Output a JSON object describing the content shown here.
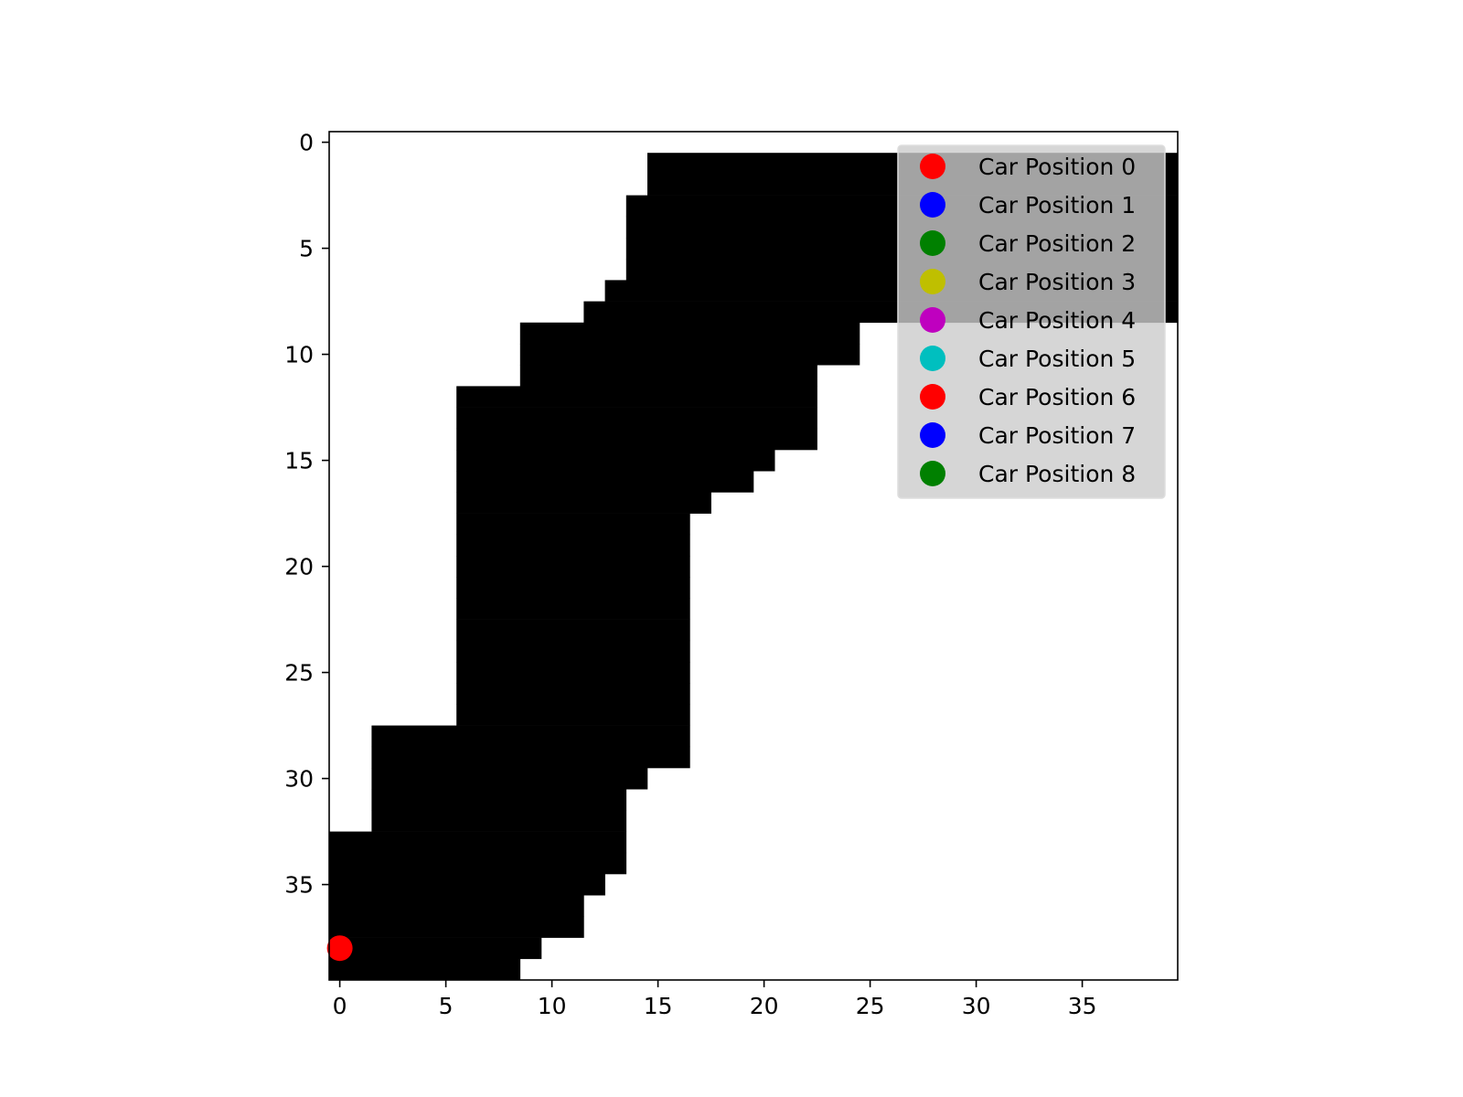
{
  "chart_data": {
    "type": "heatmap",
    "title": "",
    "xlabel": "",
    "ylabel": "",
    "grid_size": [
      40,
      40
    ],
    "xlim": [
      -0.5,
      39.5
    ],
    "ylim": [
      39.5,
      -0.5
    ],
    "grid": false,
    "x_ticks": [
      0,
      5,
      10,
      15,
      20,
      25,
      30,
      35
    ],
    "y_ticks": [
      0,
      5,
      10,
      15,
      20,
      25,
      30,
      35
    ],
    "colormap": {
      "0": "#ffffff",
      "1": "#000000"
    },
    "track_cells_by_row": [
      [
        1,
        15,
        39
      ],
      [
        2,
        15,
        39
      ],
      [
        3,
        14,
        39
      ],
      [
        4,
        14,
        39
      ],
      [
        5,
        14,
        39
      ],
      [
        6,
        14,
        39
      ],
      [
        7,
        13,
        39
      ],
      [
        8,
        12,
        39
      ],
      [
        9,
        9,
        24
      ],
      [
        10,
        9,
        24
      ],
      [
        11,
        9,
        22
      ],
      [
        12,
        6,
        22
      ],
      [
        13,
        6,
        22
      ],
      [
        14,
        6,
        22
      ],
      [
        15,
        6,
        20
      ],
      [
        16,
        6,
        19
      ],
      [
        17,
        6,
        17
      ],
      [
        18,
        6,
        16
      ],
      [
        19,
        6,
        16
      ],
      [
        20,
        6,
        16
      ],
      [
        21,
        6,
        16
      ],
      [
        22,
        6,
        16
      ],
      [
        23,
        6,
        16
      ],
      [
        24,
        6,
        16
      ],
      [
        25,
        6,
        16
      ],
      [
        26,
        6,
        16
      ],
      [
        27,
        6,
        16
      ],
      [
        28,
        2,
        16
      ],
      [
        29,
        2,
        16
      ],
      [
        30,
        2,
        14
      ],
      [
        31,
        2,
        13
      ],
      [
        32,
        2,
        13
      ],
      [
        33,
        0,
        13
      ],
      [
        34,
        0,
        13
      ],
      [
        35,
        0,
        12
      ],
      [
        36,
        0,
        11
      ],
      [
        37,
        0,
        11
      ],
      [
        38,
        0,
        9
      ],
      [
        39,
        0,
        8
      ]
    ],
    "series": [
      {
        "name": "Car Position 0",
        "color": "#ff0000",
        "points": [
          [
            0,
            38
          ]
        ]
      },
      {
        "name": "Car Position 1",
        "color": "#0000ff",
        "points": []
      },
      {
        "name": "Car Position 2",
        "color": "#008000",
        "points": []
      },
      {
        "name": "Car Position 3",
        "color": "#bfbf00",
        "points": []
      },
      {
        "name": "Car Position 4",
        "color": "#bf00bf",
        "points": []
      },
      {
        "name": "Car Position 5",
        "color": "#00bfbf",
        "points": []
      },
      {
        "name": "Car Position 6",
        "color": "#ff0000",
        "points": []
      },
      {
        "name": "Car Position 7",
        "color": "#0000ff",
        "points": []
      },
      {
        "name": "Car Position 8",
        "color": "#008000",
        "points": []
      }
    ],
    "legend_position": "top-right"
  }
}
